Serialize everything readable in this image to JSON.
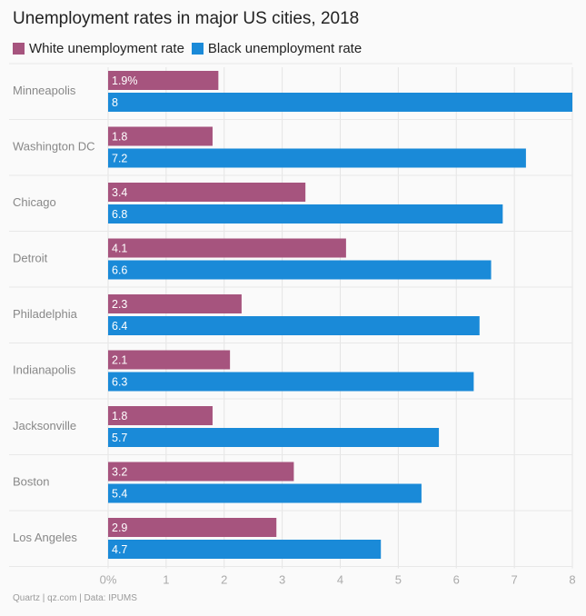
{
  "header": {
    "title": "Unemployment rates in major US cities, 2018"
  },
  "legend": {
    "items": [
      {
        "label": "White unemployment rate",
        "color": "#a6547e"
      },
      {
        "label": "Black unemployment rate",
        "color": "#1a8ad8"
      }
    ]
  },
  "footer": {
    "source": "Quartz | qz.com | Data: IPUMS"
  },
  "chart_data": {
    "type": "bar",
    "orientation": "horizontal",
    "title": "Unemployment rates in major US cities, 2018",
    "categories": [
      "Minneapolis",
      "Washington DC",
      "Chicago",
      "Detroit",
      "Philadelphia",
      "Indianapolis",
      "Jacksonville",
      "Boston",
      "Los Angeles"
    ],
    "series": [
      {
        "name": "White unemployment rate",
        "color": "#a6547e",
        "values": [
          1.9,
          1.8,
          3.4,
          4.1,
          2.3,
          2.1,
          1.8,
          3.2,
          2.9
        ],
        "value_labels": [
          "1.9%",
          "1.8",
          "3.4",
          "4.1",
          "2.3",
          "2.1",
          "1.8",
          "3.2",
          "2.9"
        ]
      },
      {
        "name": "Black unemployment rate",
        "color": "#1a8ad8",
        "values": [
          8,
          7.2,
          6.8,
          6.6,
          6.4,
          6.3,
          5.7,
          5.4,
          4.7
        ],
        "value_labels": [
          "8",
          "7.2",
          "6.8",
          "6.6",
          "6.4",
          "6.3",
          "5.7",
          "5.4",
          "4.7"
        ]
      }
    ],
    "xlim": [
      0,
      8
    ],
    "xticks": [
      0,
      1,
      2,
      3,
      4,
      5,
      6,
      7,
      8
    ],
    "xtick_labels": [
      "0%",
      "1",
      "2",
      "3",
      "4",
      "5",
      "6",
      "7",
      "8"
    ],
    "xlabel": "",
    "ylabel": "",
    "grid": true,
    "legend_position": "top-left"
  }
}
